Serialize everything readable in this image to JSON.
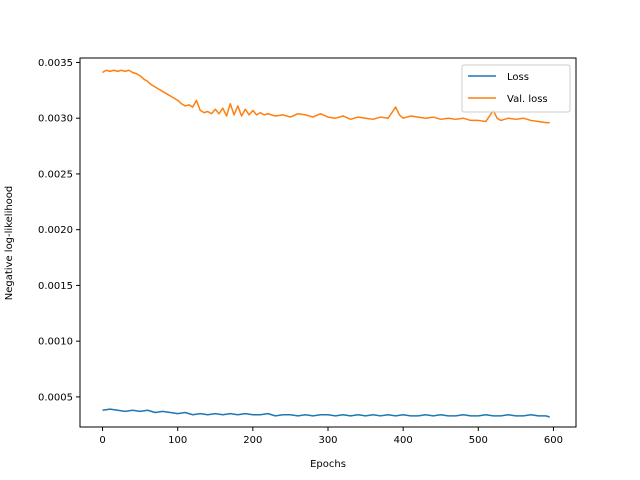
{
  "chart_data": {
    "type": "line",
    "title": "",
    "xlabel": "Epochs",
    "ylabel": "Negative log-likelihood",
    "xlim": [
      -30,
      630
    ],
    "ylim": [
      0.00023,
      0.00354
    ],
    "x_ticks": [
      0,
      100,
      200,
      300,
      400,
      500,
      600
    ],
    "x_tick_labels": [
      "0",
      "100",
      "200",
      "300",
      "400",
      "500",
      "600"
    ],
    "y_ticks": [
      0.0005,
      0.001,
      0.0015,
      0.002,
      0.0025,
      0.003,
      0.0035
    ],
    "y_tick_labels": [
      "0.0005",
      "0.0010",
      "0.0015",
      "0.0020",
      "0.0025",
      "0.0030",
      "0.0035"
    ],
    "grid": false,
    "legend_position": "top-right",
    "series": [
      {
        "name": "Loss",
        "color": "#1f77b4",
        "x": [
          0,
          10,
          20,
          30,
          40,
          50,
          60,
          70,
          80,
          90,
          100,
          110,
          120,
          130,
          140,
          150,
          160,
          170,
          180,
          190,
          200,
          210,
          220,
          230,
          240,
          250,
          260,
          270,
          280,
          290,
          300,
          310,
          320,
          330,
          340,
          350,
          360,
          370,
          380,
          390,
          400,
          410,
          420,
          430,
          440,
          450,
          460,
          470,
          480,
          490,
          500,
          510,
          520,
          530,
          540,
          550,
          560,
          570,
          580,
          590,
          595
        ],
        "values": [
          0.00038,
          0.00039,
          0.00038,
          0.00037,
          0.00038,
          0.00037,
          0.00038,
          0.00036,
          0.00037,
          0.00036,
          0.00035,
          0.00036,
          0.00034,
          0.00035,
          0.00034,
          0.00035,
          0.00034,
          0.00035,
          0.00034,
          0.00035,
          0.00034,
          0.00034,
          0.00035,
          0.00033,
          0.00034,
          0.00034,
          0.00033,
          0.00034,
          0.00033,
          0.00034,
          0.00034,
          0.00033,
          0.00034,
          0.00033,
          0.00034,
          0.00033,
          0.00034,
          0.00033,
          0.00034,
          0.00033,
          0.00034,
          0.00033,
          0.00033,
          0.00034,
          0.00033,
          0.00034,
          0.00033,
          0.00033,
          0.00034,
          0.00033,
          0.00033,
          0.00034,
          0.00033,
          0.00033,
          0.00034,
          0.00033,
          0.00033,
          0.00034,
          0.00033,
          0.00033,
          0.00032
        ]
      },
      {
        "name": "Val. loss",
        "color": "#ff7f0e",
        "x": [
          0,
          5,
          10,
          15,
          20,
          25,
          30,
          35,
          40,
          45,
          50,
          55,
          60,
          65,
          70,
          75,
          80,
          85,
          90,
          95,
          100,
          105,
          110,
          115,
          120,
          125,
          130,
          135,
          140,
          145,
          150,
          155,
          160,
          165,
          170,
          175,
          180,
          185,
          190,
          195,
          200,
          205,
          210,
          215,
          220,
          230,
          240,
          250,
          260,
          270,
          280,
          290,
          300,
          310,
          320,
          330,
          340,
          350,
          360,
          370,
          380,
          385,
          390,
          395,
          400,
          410,
          420,
          430,
          440,
          450,
          460,
          470,
          480,
          490,
          500,
          510,
          515,
          520,
          525,
          530,
          540,
          550,
          560,
          570,
          580,
          590,
          595
        ],
        "values": [
          0.00341,
          0.00343,
          0.00342,
          0.00343,
          0.00342,
          0.00343,
          0.00342,
          0.00343,
          0.00341,
          0.0034,
          0.00338,
          0.00335,
          0.00333,
          0.0033,
          0.00328,
          0.00326,
          0.00324,
          0.00322,
          0.0032,
          0.00318,
          0.00316,
          0.00313,
          0.00311,
          0.00312,
          0.0031,
          0.00316,
          0.00307,
          0.00305,
          0.00306,
          0.00304,
          0.00308,
          0.00304,
          0.00309,
          0.00302,
          0.00313,
          0.00303,
          0.00311,
          0.00302,
          0.00308,
          0.00303,
          0.00307,
          0.00303,
          0.00305,
          0.00303,
          0.00304,
          0.00302,
          0.00303,
          0.00301,
          0.00304,
          0.00303,
          0.00301,
          0.00304,
          0.00301,
          0.003,
          0.00302,
          0.00299,
          0.00301,
          0.003,
          0.00299,
          0.00301,
          0.003,
          0.00305,
          0.0031,
          0.00303,
          0.003,
          0.00302,
          0.00301,
          0.003,
          0.00301,
          0.00299,
          0.003,
          0.00299,
          0.003,
          0.00298,
          0.00298,
          0.00297,
          0.00302,
          0.00307,
          0.003,
          0.00298,
          0.003,
          0.00299,
          0.003,
          0.00298,
          0.00297,
          0.00296,
          0.00296
        ]
      }
    ]
  }
}
